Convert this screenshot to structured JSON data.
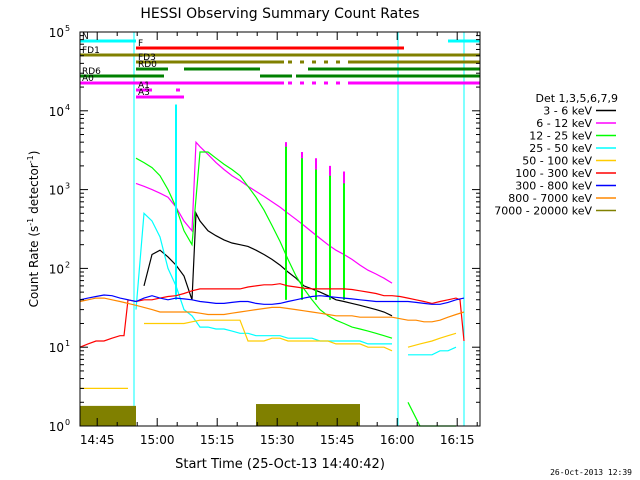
{
  "chart_data": {
    "type": "line",
    "title": "HESSI Observing Summary Count Rates",
    "xlabel": "Start Time (25-Oct-13 14:40:42)",
    "ylabel": "Count Rate (s⁻¹ detector⁻¹)",
    "ylabel_parts": {
      "main": "Count Rate (s",
      "exp1": "-1",
      "mid": " detector",
      "exp2": "-1",
      "end": ")"
    },
    "footer": "26-Oct-2013 12:39",
    "x_unit": "minutes after 14:40:42",
    "xlim": [
      0,
      100
    ],
    "x_ticks": [
      {
        "label": "14:45",
        "value": 4.3
      },
      {
        "label": "15:00",
        "value": 19.3
      },
      {
        "label": "15:15",
        "value": 34.3
      },
      {
        "label": "15:30",
        "value": 49.3
      },
      {
        "label": "15:45",
        "value": 64.3
      },
      {
        "label": "16:00",
        "value": 79.3
      },
      {
        "label": "16:15",
        "value": 94.3
      }
    ],
    "y_scale": "log",
    "ylim": [
      1,
      100000
    ],
    "y_ticks": [
      {
        "base": "10",
        "exp": "0",
        "value": 1
      },
      {
        "base": "10",
        "exp": "1",
        "value": 10
      },
      {
        "base": "10",
        "exp": "2",
        "value": 100
      },
      {
        "base": "10",
        "exp": "3",
        "value": 1000
      },
      {
        "base": "10",
        "exp": "4",
        "value": 10000
      },
      {
        "base": "10",
        "exp": "5",
        "value": 100000
      }
    ],
    "legend_title": "Det 1,3,5,6,7,9",
    "legend_position": "right",
    "series": [
      {
        "name": "3 - 6 keV",
        "color": "#000000",
        "x": [
          0,
          5,
          10,
          12,
          14,
          16,
          18,
          20,
          22,
          24,
          26,
          28,
          29,
          30,
          32,
          34,
          36,
          38,
          40,
          42,
          44,
          46,
          48,
          50,
          52,
          54,
          56,
          58,
          60,
          62,
          64,
          66,
          68,
          70,
          72,
          74,
          76,
          78,
          79
        ],
        "y": [
          null,
          null,
          null,
          null,
          null,
          60,
          150,
          170,
          140,
          110,
          80,
          40,
          500,
          400,
          300,
          260,
          230,
          210,
          200,
          190,
          170,
          150,
          130,
          110,
          90,
          75,
          60,
          55,
          50,
          45,
          40,
          38,
          36,
          34,
          32,
          30,
          28,
          25,
          null
        ]
      },
      {
        "name": "6 - 12 keV",
        "color": "#ff00ff",
        "x": [
          0,
          12,
          14,
          16,
          18,
          20,
          22,
          24,
          26,
          28,
          29,
          30,
          32,
          34,
          36,
          38,
          40,
          42,
          44,
          46,
          48,
          50,
          52,
          54,
          56,
          58,
          60,
          62,
          64,
          66,
          68,
          70,
          72,
          74,
          76,
          78,
          79,
          82,
          85,
          90,
          95,
          96
        ],
        "y": [
          null,
          null,
          1200,
          1100,
          1000,
          900,
          800,
          600,
          400,
          300,
          4000,
          3500,
          2800,
          2200,
          1800,
          1500,
          1300,
          1100,
          950,
          820,
          700,
          600,
          500,
          420,
          350,
          290,
          240,
          200,
          170,
          150,
          130,
          110,
          95,
          85,
          75,
          65,
          null,
          null,
          null,
          null,
          null,
          null
        ],
        "spikes": [
          {
            "x": 51.5,
            "y": 4000
          },
          {
            "x": 55.5,
            "y": 3000
          },
          {
            "x": 59,
            "y": 2500
          },
          {
            "x": 62.5,
            "y": 2000
          },
          {
            "x": 66,
            "y": 1700
          }
        ]
      },
      {
        "name": "12 - 25 keV",
        "color": "#00ff00",
        "x": [
          0,
          12,
          14,
          16,
          18,
          20,
          22,
          24,
          26,
          28,
          30,
          32,
          34,
          36,
          38,
          40,
          42,
          44,
          46,
          48,
          50,
          52,
          54,
          56,
          58,
          60,
          62,
          64,
          66,
          68,
          70,
          72,
          74,
          76,
          78,
          79,
          82,
          85,
          88,
          90,
          92,
          94,
          96
        ],
        "y": [
          null,
          null,
          2500,
          2200,
          1900,
          1500,
          1000,
          600,
          300,
          200,
          3000,
          3000,
          2500,
          2100,
          1800,
          1500,
          1100,
          800,
          550,
          350,
          220,
          130,
          80,
          55,
          40,
          30,
          25,
          22,
          20,
          18,
          17,
          16,
          15,
          14,
          13,
          null,
          2,
          1,
          1,
          1,
          1,
          1,
          null
        ],
        "spikes": [
          {
            "x": 51.5,
            "y": 3500
          },
          {
            "x": 55.5,
            "y": 2500
          },
          {
            "x": 59,
            "y": 1800
          },
          {
            "x": 62.5,
            "y": 1500
          },
          {
            "x": 66,
            "y": 1200
          }
        ]
      },
      {
        "name": "25 - 50 keV",
        "color": "#00ffff",
        "x": [
          0,
          12,
          14,
          16,
          18,
          20,
          22,
          24,
          26,
          28,
          30,
          32,
          34,
          36,
          38,
          40,
          42,
          44,
          46,
          48,
          50,
          52,
          54,
          56,
          58,
          60,
          62,
          64,
          66,
          68,
          70,
          72,
          74,
          76,
          78,
          79,
          82,
          85,
          88,
          90,
          92,
          94,
          96
        ],
        "y": [
          null,
          null,
          30,
          500,
          400,
          250,
          100,
          60,
          30,
          25,
          18,
          18,
          17,
          17,
          16,
          15,
          15,
          14,
          14,
          14,
          14,
          13,
          13,
          13,
          13,
          12,
          12,
          12,
          12,
          12,
          12,
          11,
          11,
          11,
          11,
          null,
          8,
          8,
          8,
          9,
          9,
          10,
          null
        ],
        "spikes": [
          {
            "x": 24,
            "y": 12000
          }
        ]
      },
      {
        "name": "50 - 100 keV",
        "color": "#ffcc00",
        "x": [
          0,
          2,
          4,
          6,
          8,
          10,
          12,
          14,
          16,
          18,
          20,
          22,
          24,
          26,
          28,
          30,
          32,
          34,
          36,
          38,
          40,
          42,
          44,
          46,
          48,
          50,
          52,
          54,
          56,
          58,
          60,
          62,
          64,
          66,
          68,
          70,
          72,
          74,
          76,
          78,
          79,
          82,
          85,
          88,
          90,
          92,
          94,
          96
        ],
        "y": [
          3,
          3,
          3,
          3,
          3,
          3,
          3,
          null,
          20,
          20,
          20,
          20,
          20,
          20,
          21,
          22,
          22,
          22,
          22,
          22,
          22,
          12,
          12,
          12,
          13,
          13,
          12,
          12,
          12,
          12,
          12,
          12,
          11,
          11,
          11,
          11,
          10,
          10,
          10,
          9,
          null,
          10,
          11,
          12,
          13,
          14,
          15,
          null
        ]
      },
      {
        "name": "100 - 300 keV",
        "color": "#ff0000",
        "x": [
          0,
          2,
          4,
          6,
          8,
          10,
          11,
          12,
          14,
          16,
          18,
          20,
          22,
          24,
          26,
          28,
          30,
          32,
          34,
          36,
          38,
          40,
          42,
          44,
          46,
          48,
          50,
          52,
          54,
          56,
          58,
          60,
          62,
          64,
          66,
          68,
          70,
          72,
          74,
          76,
          78,
          80,
          82,
          84,
          86,
          88,
          90,
          92,
          94,
          95,
          96
        ],
        "y": [
          10,
          11,
          12,
          12,
          13,
          14,
          14,
          40,
          38,
          40,
          40,
          42,
          44,
          45,
          48,
          52,
          55,
          55,
          55,
          55,
          55,
          55,
          58,
          60,
          62,
          62,
          64,
          60,
          58,
          56,
          55,
          55,
          55,
          55,
          55,
          54,
          52,
          50,
          48,
          45,
          45,
          44,
          42,
          40,
          38,
          36,
          38,
          40,
          42,
          40,
          12
        ]
      },
      {
        "name": "300 - 800 keV",
        "color": "#0000ff",
        "x": [
          0,
          2,
          4,
          6,
          8,
          10,
          12,
          14,
          16,
          18,
          20,
          22,
          24,
          26,
          28,
          30,
          32,
          34,
          36,
          38,
          40,
          42,
          44,
          46,
          48,
          50,
          52,
          54,
          56,
          58,
          60,
          62,
          64,
          66,
          68,
          70,
          72,
          74,
          76,
          78,
          80,
          82,
          84,
          86,
          88,
          90,
          92,
          94,
          96
        ],
        "y": [
          40,
          42,
          44,
          46,
          45,
          42,
          40,
          38,
          42,
          45,
          42,
          40,
          42,
          41,
          40,
          38,
          37,
          36,
          36,
          37,
          38,
          38,
          36,
          35,
          35,
          36,
          38,
          40,
          42,
          44,
          45,
          44,
          43,
          42,
          41,
          40,
          39,
          38,
          38,
          38,
          38,
          38,
          37,
          36,
          35,
          35,
          37,
          40,
          42
        ]
      },
      {
        "name": "800 - 7000 keV",
        "color": "#ff8800",
        "x": [
          0,
          2,
          4,
          6,
          8,
          10,
          12,
          14,
          16,
          18,
          20,
          22,
          24,
          26,
          28,
          30,
          32,
          34,
          36,
          38,
          40,
          42,
          44,
          46,
          48,
          50,
          52,
          54,
          56,
          58,
          60,
          62,
          64,
          66,
          68,
          70,
          72,
          74,
          76,
          78,
          80,
          82,
          84,
          86,
          88,
          90,
          92,
          94,
          96
        ],
        "y": [
          38,
          40,
          42,
          42,
          40,
          38,
          36,
          34,
          32,
          30,
          28,
          28,
          28,
          28,
          28,
          27,
          26,
          26,
          26,
          27,
          28,
          29,
          30,
          31,
          32,
          32,
          31,
          30,
          29,
          28,
          27,
          26,
          25,
          25,
          25,
          24,
          24,
          24,
          24,
          24,
          23,
          22,
          22,
          21,
          21,
          22,
          24,
          26,
          28
        ]
      },
      {
        "name": "7000 - 20000 keV",
        "color": "#808000",
        "x": [
          0,
          2,
          4,
          6,
          8,
          10,
          12,
          14,
          16,
          18,
          20,
          22,
          24,
          26,
          28,
          30,
          32,
          34,
          36,
          38,
          40,
          42,
          44,
          46,
          48,
          50,
          52,
          54,
          56,
          58,
          60,
          62,
          64,
          66,
          68,
          70,
          72,
          74,
          76,
          78,
          80,
          82,
          84,
          86,
          88,
          90,
          92,
          94,
          96
        ],
        "y": [
          null,
          null,
          null,
          null,
          null,
          null,
          null,
          null,
          null,
          null,
          null,
          null,
          null,
          null,
          null,
          null,
          null,
          null,
          null,
          null,
          null,
          null,
          null,
          null,
          null,
          null,
          null,
          null,
          null,
          null,
          null,
          null,
          null,
          null,
          null,
          null,
          null,
          null,
          null,
          null,
          null,
          null,
          null,
          null,
          null,
          null,
          null,
          null,
          null
        ],
        "bands": [
          {
            "x0": 0,
            "x1": 14,
            "y0": 1,
            "y1": 1.8
          },
          {
            "x0": 44,
            "x1": 70,
            "y0": 1,
            "y1": 1.9
          }
        ]
      }
    ],
    "flag_bars": [
      {
        "label": "N",
        "color": "#00ffff",
        "y_level": 1,
        "segments": [
          [
            0,
            14
          ],
          [
            92,
            100
          ]
        ]
      },
      {
        "label": "F",
        "color": "#ff0000",
        "y_level": 2,
        "segments": [
          [
            14,
            81
          ]
        ]
      },
      {
        "label": "FD1",
        "color": "#808000",
        "y_level": 3,
        "segments": [
          [
            0,
            100
          ]
        ]
      },
      {
        "label": "FD3",
        "color": "#808000",
        "y_level": 4,
        "segments": [
          [
            14,
            51
          ],
          [
            52,
            53
          ],
          [
            55,
            56
          ],
          [
            58,
            59
          ],
          [
            61,
            62
          ],
          [
            64,
            65
          ],
          [
            67,
            100
          ]
        ]
      },
      {
        "label": "RD0",
        "color": "#008000",
        "y_level": 5,
        "segments": [
          [
            14,
            22
          ],
          [
            26,
            45
          ],
          [
            57,
            100
          ]
        ]
      },
      {
        "label": "RD6",
        "color": "#008000",
        "y_level": 6,
        "segments": [
          [
            0,
            21
          ],
          [
            45,
            53
          ],
          [
            54,
            100
          ]
        ]
      },
      {
        "label": "A0",
        "color": "#ff00ff",
        "y_level": 7,
        "segments": [
          [
            0,
            14
          ],
          [
            14,
            51
          ],
          [
            52,
            53
          ],
          [
            55,
            56
          ],
          [
            58,
            59
          ],
          [
            61,
            62
          ],
          [
            64,
            65
          ],
          [
            67,
            100
          ]
        ]
      },
      {
        "label": "A1",
        "color": "#ff00ff",
        "y_level": 8,
        "segments": [
          [
            14,
            18
          ],
          [
            24,
            25
          ]
        ]
      },
      {
        "label": "A3",
        "color": "#ff00ff",
        "y_level": 9,
        "segments": [
          [
            14,
            26
          ]
        ]
      }
    ],
    "vertical_lines": [
      {
        "x": 13.5,
        "color": "#00ffff"
      },
      {
        "x": 79.5,
        "color": "#00ffff"
      },
      {
        "x": 96,
        "color": "#00ffff"
      }
    ],
    "grid": false
  }
}
